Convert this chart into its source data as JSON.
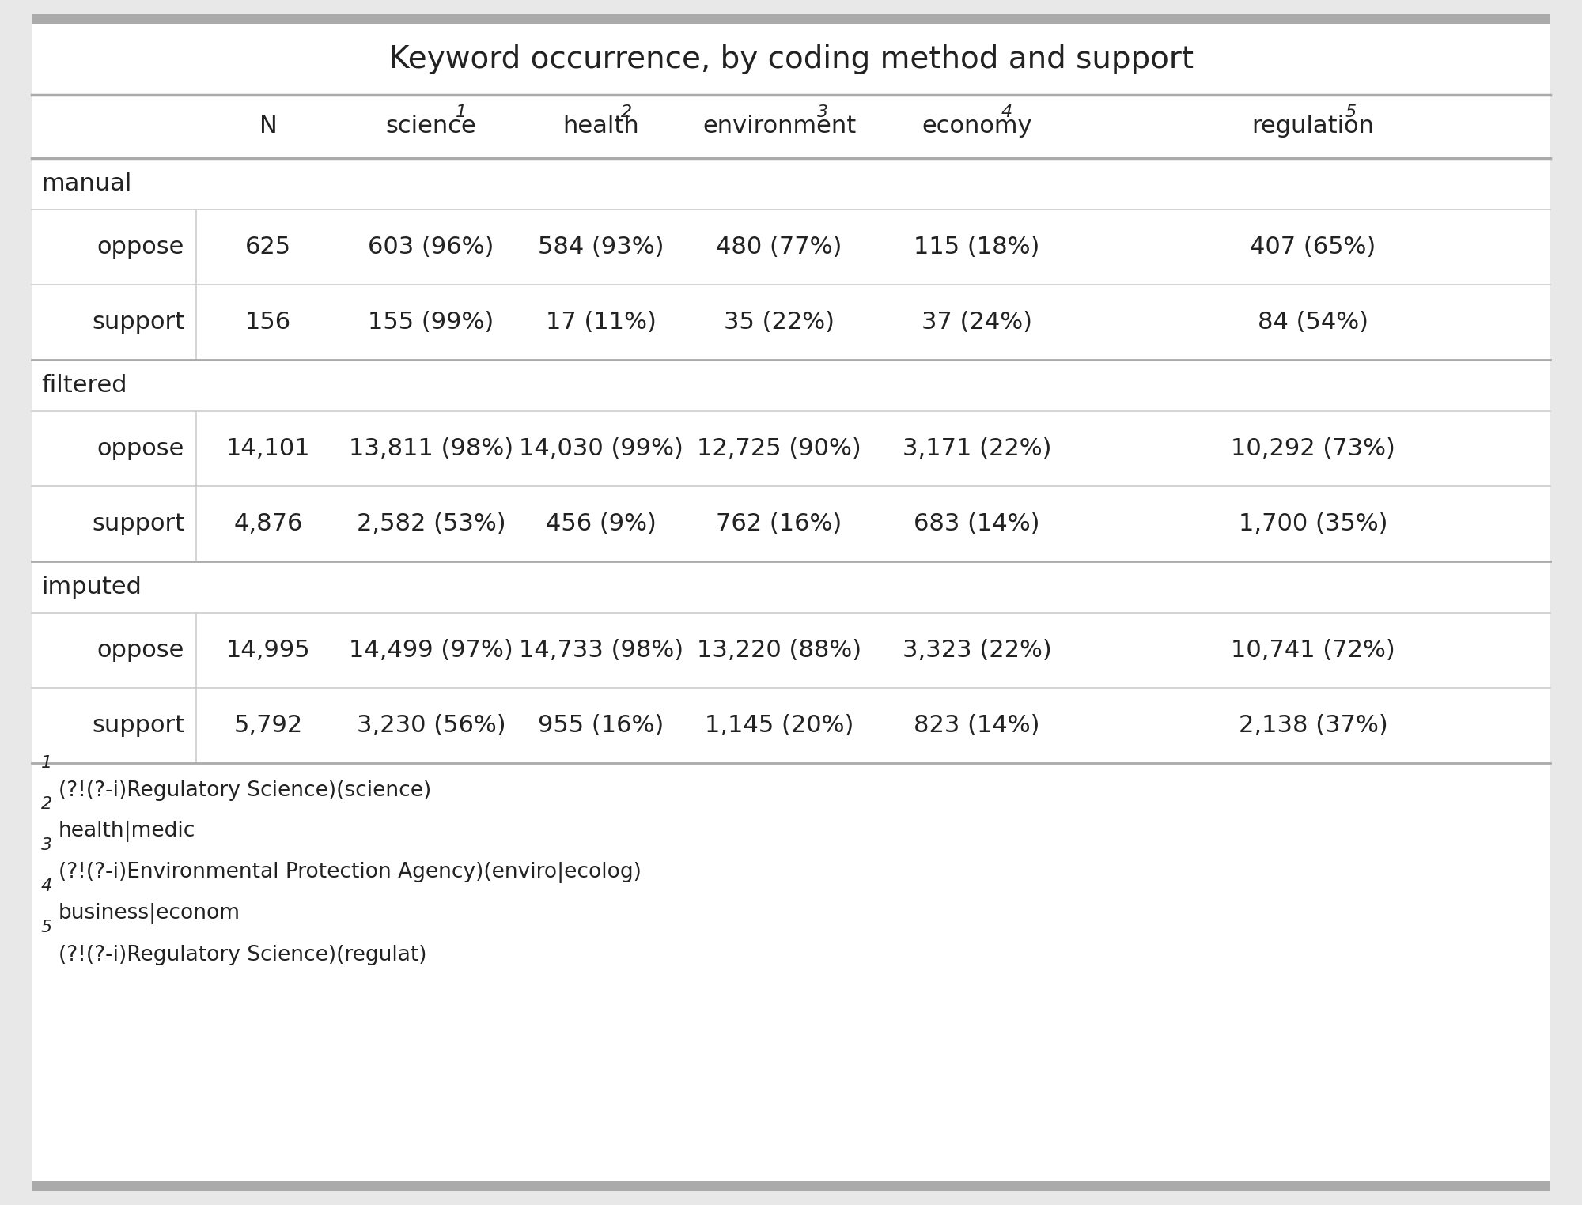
{
  "title": "Keyword occurrence, by coding method and support",
  "col_headers_raw": [
    "N",
    "science",
    "health",
    "environment",
    "economy",
    "regulation"
  ],
  "col_superscripts": [
    "",
    "1",
    "2",
    "3",
    "4",
    "5"
  ],
  "sections": [
    {
      "name": "manual",
      "rows": [
        {
          "label": "oppose",
          "values": [
            "625",
            "603 (96%)",
            "584 (93%)",
            "480 (77%)",
            "115 (18%)",
            "407 (65%)"
          ]
        },
        {
          "label": "support",
          "values": [
            "156",
            "155 (99%)",
            "17 (11%)",
            "35 (22%)",
            "37 (24%)",
            "84 (54%)"
          ]
        }
      ]
    },
    {
      "name": "filtered",
      "rows": [
        {
          "label": "oppose",
          "values": [
            "14,101",
            "13,811 (98%)",
            "14,030 (99%)",
            "12,725 (90%)",
            "3,171 (22%)",
            "10,292 (73%)"
          ]
        },
        {
          "label": "support",
          "values": [
            "4,876",
            "2,582 (53%)",
            "456 (9%)",
            "762 (16%)",
            "683 (14%)",
            "1,700 (35%)"
          ]
        }
      ]
    },
    {
      "name": "imputed",
      "rows": [
        {
          "label": "oppose",
          "values": [
            "14,995",
            "14,499 (97%)",
            "14,733 (98%)",
            "13,220 (88%)",
            "3,323 (22%)",
            "10,741 (72%)"
          ]
        },
        {
          "label": "support",
          "values": [
            "5,792",
            "3,230 (56%)",
            "955 (16%)",
            "1,145 (20%)",
            "823 (14%)",
            "2,138 (37%)"
          ]
        }
      ]
    }
  ],
  "footnotes": [
    {
      "num": "1",
      "text": "(?!(?-i)Regulatory Science)(science)"
    },
    {
      "num": "2",
      "text": "health|medic"
    },
    {
      "num": "3",
      "text": "(?!(?-i)Environmental Protection Agency)(enviro|ecolog)"
    },
    {
      "num": "4",
      "text": "business|econom"
    },
    {
      "num": "5",
      "text": "(?!(?-i)Regulatory Science)(regulat)"
    }
  ],
  "bg_color": "#e8e8e8",
  "table_bg": "#ffffff",
  "thick_line_color": "#aaaaaa",
  "thin_line_color": "#cccccc",
  "title_fontsize": 28,
  "header_fontsize": 22,
  "body_fontsize": 22,
  "section_fontsize": 22,
  "footnote_fontsize": 19,
  "sup_fontsize": 16
}
